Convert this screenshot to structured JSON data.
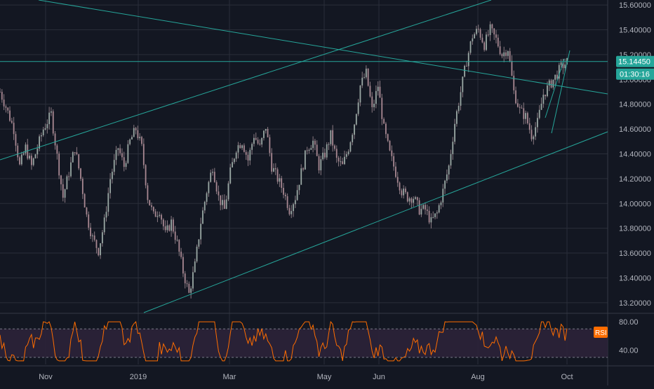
{
  "chart_data": [
    {
      "type": "candlestick",
      "title": "",
      "instrument": "",
      "x_ticks": [
        "Nov",
        "2019",
        "Mar",
        "May",
        "Jun",
        "Aug",
        "Oct"
      ],
      "ylim": [
        13.12,
        15.64
      ],
      "y_ticks": [
        "15.60000",
        "15.40000",
        "15.20000",
        "15.00000",
        "14.80000",
        "14.60000",
        "14.40000",
        "14.20000",
        "14.00000",
        "13.80000",
        "13.60000",
        "13.40000",
        "13.20000"
      ],
      "last_price": "15.14450",
      "countdown": "01:30:16",
      "close_path": [
        [
          0,
          14.9
        ],
        [
          3,
          14.78
        ],
        [
          7,
          14.6
        ],
        [
          10,
          14.3
        ],
        [
          13,
          14.45
        ],
        [
          16,
          14.3
        ],
        [
          19,
          14.45
        ],
        [
          22,
          14.6
        ],
        [
          26,
          14.72
        ],
        [
          29,
          14.38
        ],
        [
          32,
          14.05
        ],
        [
          35,
          14.25
        ],
        [
          38,
          14.45
        ],
        [
          41,
          14.2
        ],
        [
          44,
          13.9
        ],
        [
          47,
          13.72
        ],
        [
          50,
          13.62
        ],
        [
          53,
          13.85
        ],
        [
          56,
          14.2
        ],
        [
          60,
          14.45
        ],
        [
          63,
          14.3
        ],
        [
          66,
          14.5
        ],
        [
          69,
          14.6
        ],
        [
          72,
          14.45
        ],
        [
          75,
          14.05
        ],
        [
          78,
          13.9
        ],
        [
          81,
          13.95
        ],
        [
          84,
          13.75
        ],
        [
          87,
          13.85
        ],
        [
          90,
          13.68
        ],
        [
          93,
          13.45
        ],
        [
          96,
          13.27
        ],
        [
          99,
          13.5
        ],
        [
          102,
          13.85
        ],
        [
          105,
          14.1
        ],
        [
          108,
          14.3
        ],
        [
          111,
          14.05
        ],
        [
          114,
          13.95
        ],
        [
          117,
          14.25
        ],
        [
          120,
          14.45
        ],
        [
          123,
          14.5
        ],
        [
          126,
          14.35
        ],
        [
          129,
          14.55
        ],
        [
          132,
          14.45
        ],
        [
          135,
          14.62
        ],
        [
          138,
          14.3
        ],
        [
          141,
          14.2
        ],
        [
          144,
          14.1
        ],
        [
          147,
          13.95
        ],
        [
          150,
          14.05
        ],
        [
          153,
          14.25
        ],
        [
          156,
          14.45
        ],
        [
          159,
          14.5
        ],
        [
          162,
          14.3
        ],
        [
          165,
          14.4
        ],
        [
          168,
          14.55
        ],
        [
          171,
          14.35
        ],
        [
          174,
          14.3
        ],
        [
          177,
          14.45
        ],
        [
          180,
          14.65
        ],
        [
          183,
          14.95
        ],
        [
          186,
          15.05
        ],
        [
          189,
          14.75
        ],
        [
          192,
          14.95
        ],
        [
          195,
          14.6
        ],
        [
          198,
          14.4
        ],
        [
          201,
          14.25
        ],
        [
          204,
          14.1
        ],
        [
          207,
          14.05
        ],
        [
          210,
          14.05
        ],
        [
          213,
          13.95
        ],
        [
          216,
          13.95
        ],
        [
          219,
          13.85
        ],
        [
          222,
          13.92
        ],
        [
          225,
          14.1
        ],
        [
          228,
          14.3
        ],
        [
          231,
          14.65
        ],
        [
          234,
          14.9
        ],
        [
          237,
          15.15
        ],
        [
          240,
          15.35
        ],
        [
          243,
          15.4
        ],
        [
          246,
          15.28
        ],
        [
          249,
          15.4
        ],
        [
          252,
          15.32
        ],
        [
          255,
          15.2
        ],
        [
          258,
          15.25
        ],
        [
          261,
          14.9
        ],
        [
          264,
          14.75
        ],
        [
          267,
          14.7
        ],
        [
          270,
          14.55
        ],
        [
          273,
          14.65
        ],
        [
          276,
          14.88
        ],
        [
          279,
          14.95
        ],
        [
          282,
          15.02
        ],
        [
          285,
          15.1
        ],
        [
          288,
          15.14
        ]
      ],
      "rsi": {
        "label": "RSI",
        "y_ticks": [
          "80.00",
          "40.00"
        ],
        "ylim": [
          20,
          90
        ],
        "upper_band": 70,
        "lower_band": 30
      }
    }
  ],
  "colors": {
    "background": "#131722",
    "grid": "#2a2e39",
    "trendline": "#26a69a",
    "candle": "#8a7a82",
    "rsi_line": "#ff6d00",
    "rsi_fill": "#2c2238",
    "price_tag": "#26a69a",
    "rsi_tag": "#ff6d00"
  }
}
